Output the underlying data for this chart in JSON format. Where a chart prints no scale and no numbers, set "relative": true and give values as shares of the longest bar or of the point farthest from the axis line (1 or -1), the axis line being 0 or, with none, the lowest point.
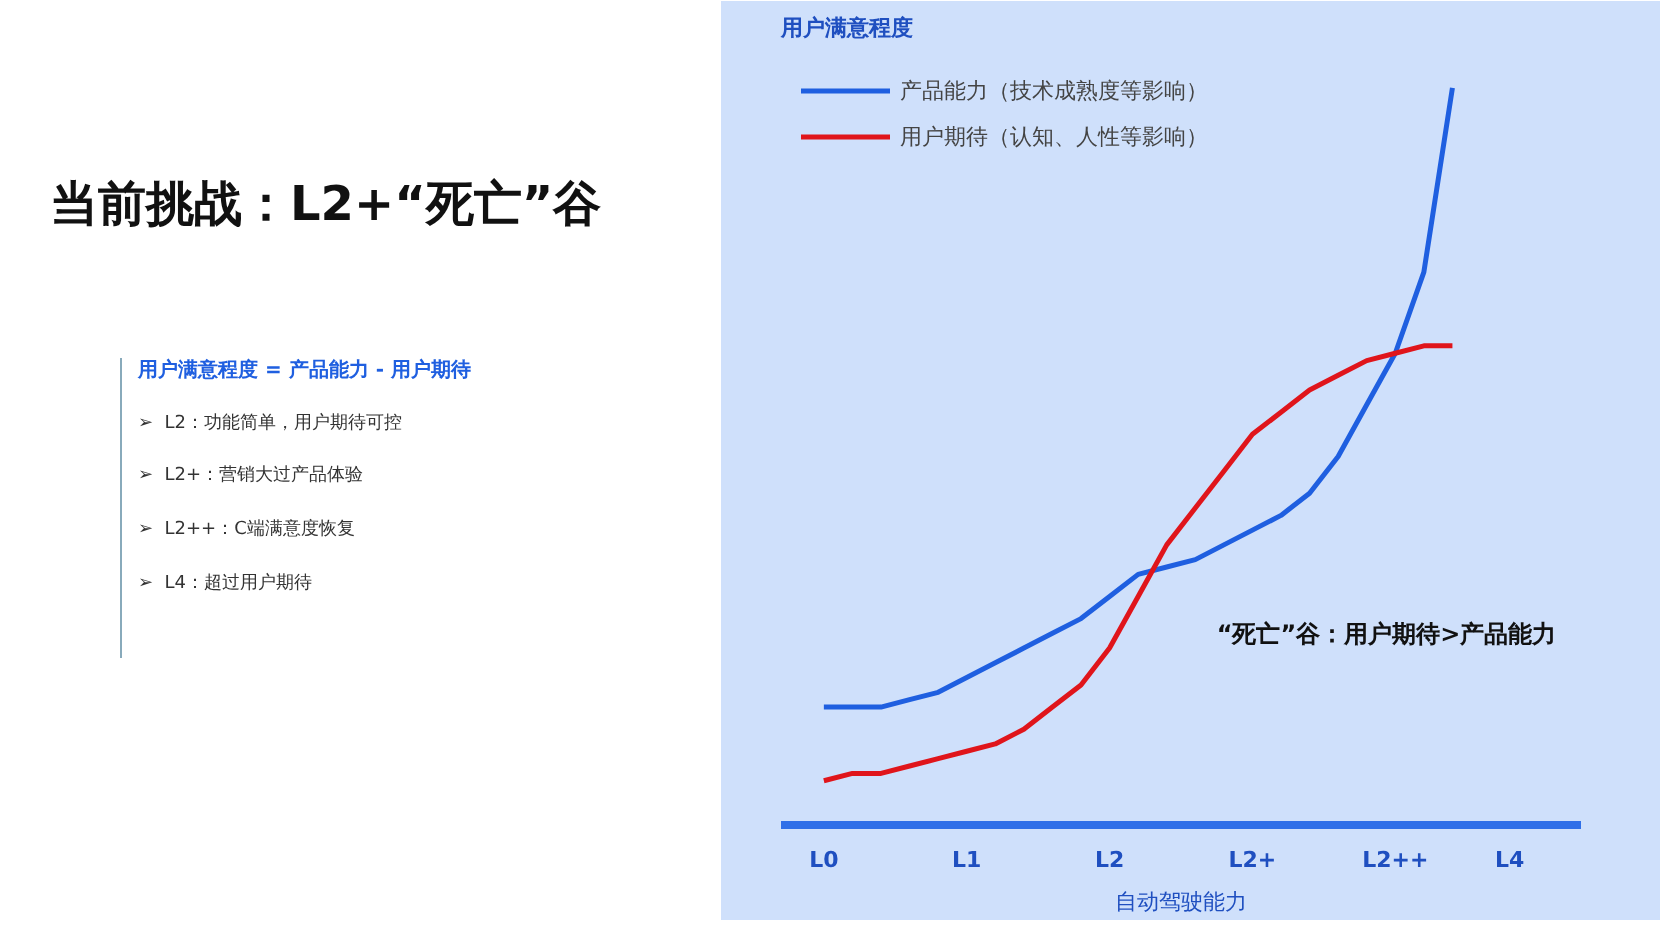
{
  "chart_data": {
    "type": "line",
    "relative": true,
    "title": "当前挑战：L2+“死亡”谷",
    "subtitle": "用户满意程度 = 产品能力 - 用户期待",
    "ylabel": "用户满意程度",
    "xlabel": "自动驾驶能力",
    "categories": [
      "L0",
      null,
      null,
      null,
      null,
      "L1",
      null,
      null,
      null,
      null,
      "L2",
      null,
      null,
      null,
      null,
      "L2+",
      null,
      null,
      null,
      null,
      "L2++",
      null,
      null,
      null,
      "L4"
    ],
    "series": [
      {
        "name": "产品能力（技术成熟度等影响）",
        "color": "#1f5fe0",
        "values": [
          0.16,
          0.16,
          0.16,
          0.17,
          0.18,
          0.2,
          0.22,
          0.24,
          0.26,
          0.28,
          0.31,
          0.34,
          0.35,
          0.36,
          0.38,
          0.4,
          0.42,
          0.45,
          0.5,
          0.57,
          0.64,
          0.75,
          1.0,
          null,
          null
        ]
      },
      {
        "name": "用户期待（认知、人性等影响）",
        "color": "#e0151b",
        "values": [
          0.06,
          0.07,
          0.07,
          0.08,
          0.09,
          0.1,
          0.11,
          0.13,
          0.16,
          0.19,
          0.24,
          0.31,
          0.38,
          0.43,
          0.48,
          0.53,
          0.56,
          0.59,
          0.61,
          0.63,
          0.64,
          0.65,
          0.65,
          null,
          null
        ]
      }
    ],
    "annotations": [
      "“死亡”谷：用户期待>产品能力",
      "➢  L2：功能简单，用户期待可控",
      "➢  L2+：营销大过产品体验",
      "➢  L2++：C端满意度恢复",
      "➢  L4：超过用户期待"
    ],
    "legend": "top left",
    "grid": false,
    "marker": "none",
    "line_style": "solid"
  }
}
